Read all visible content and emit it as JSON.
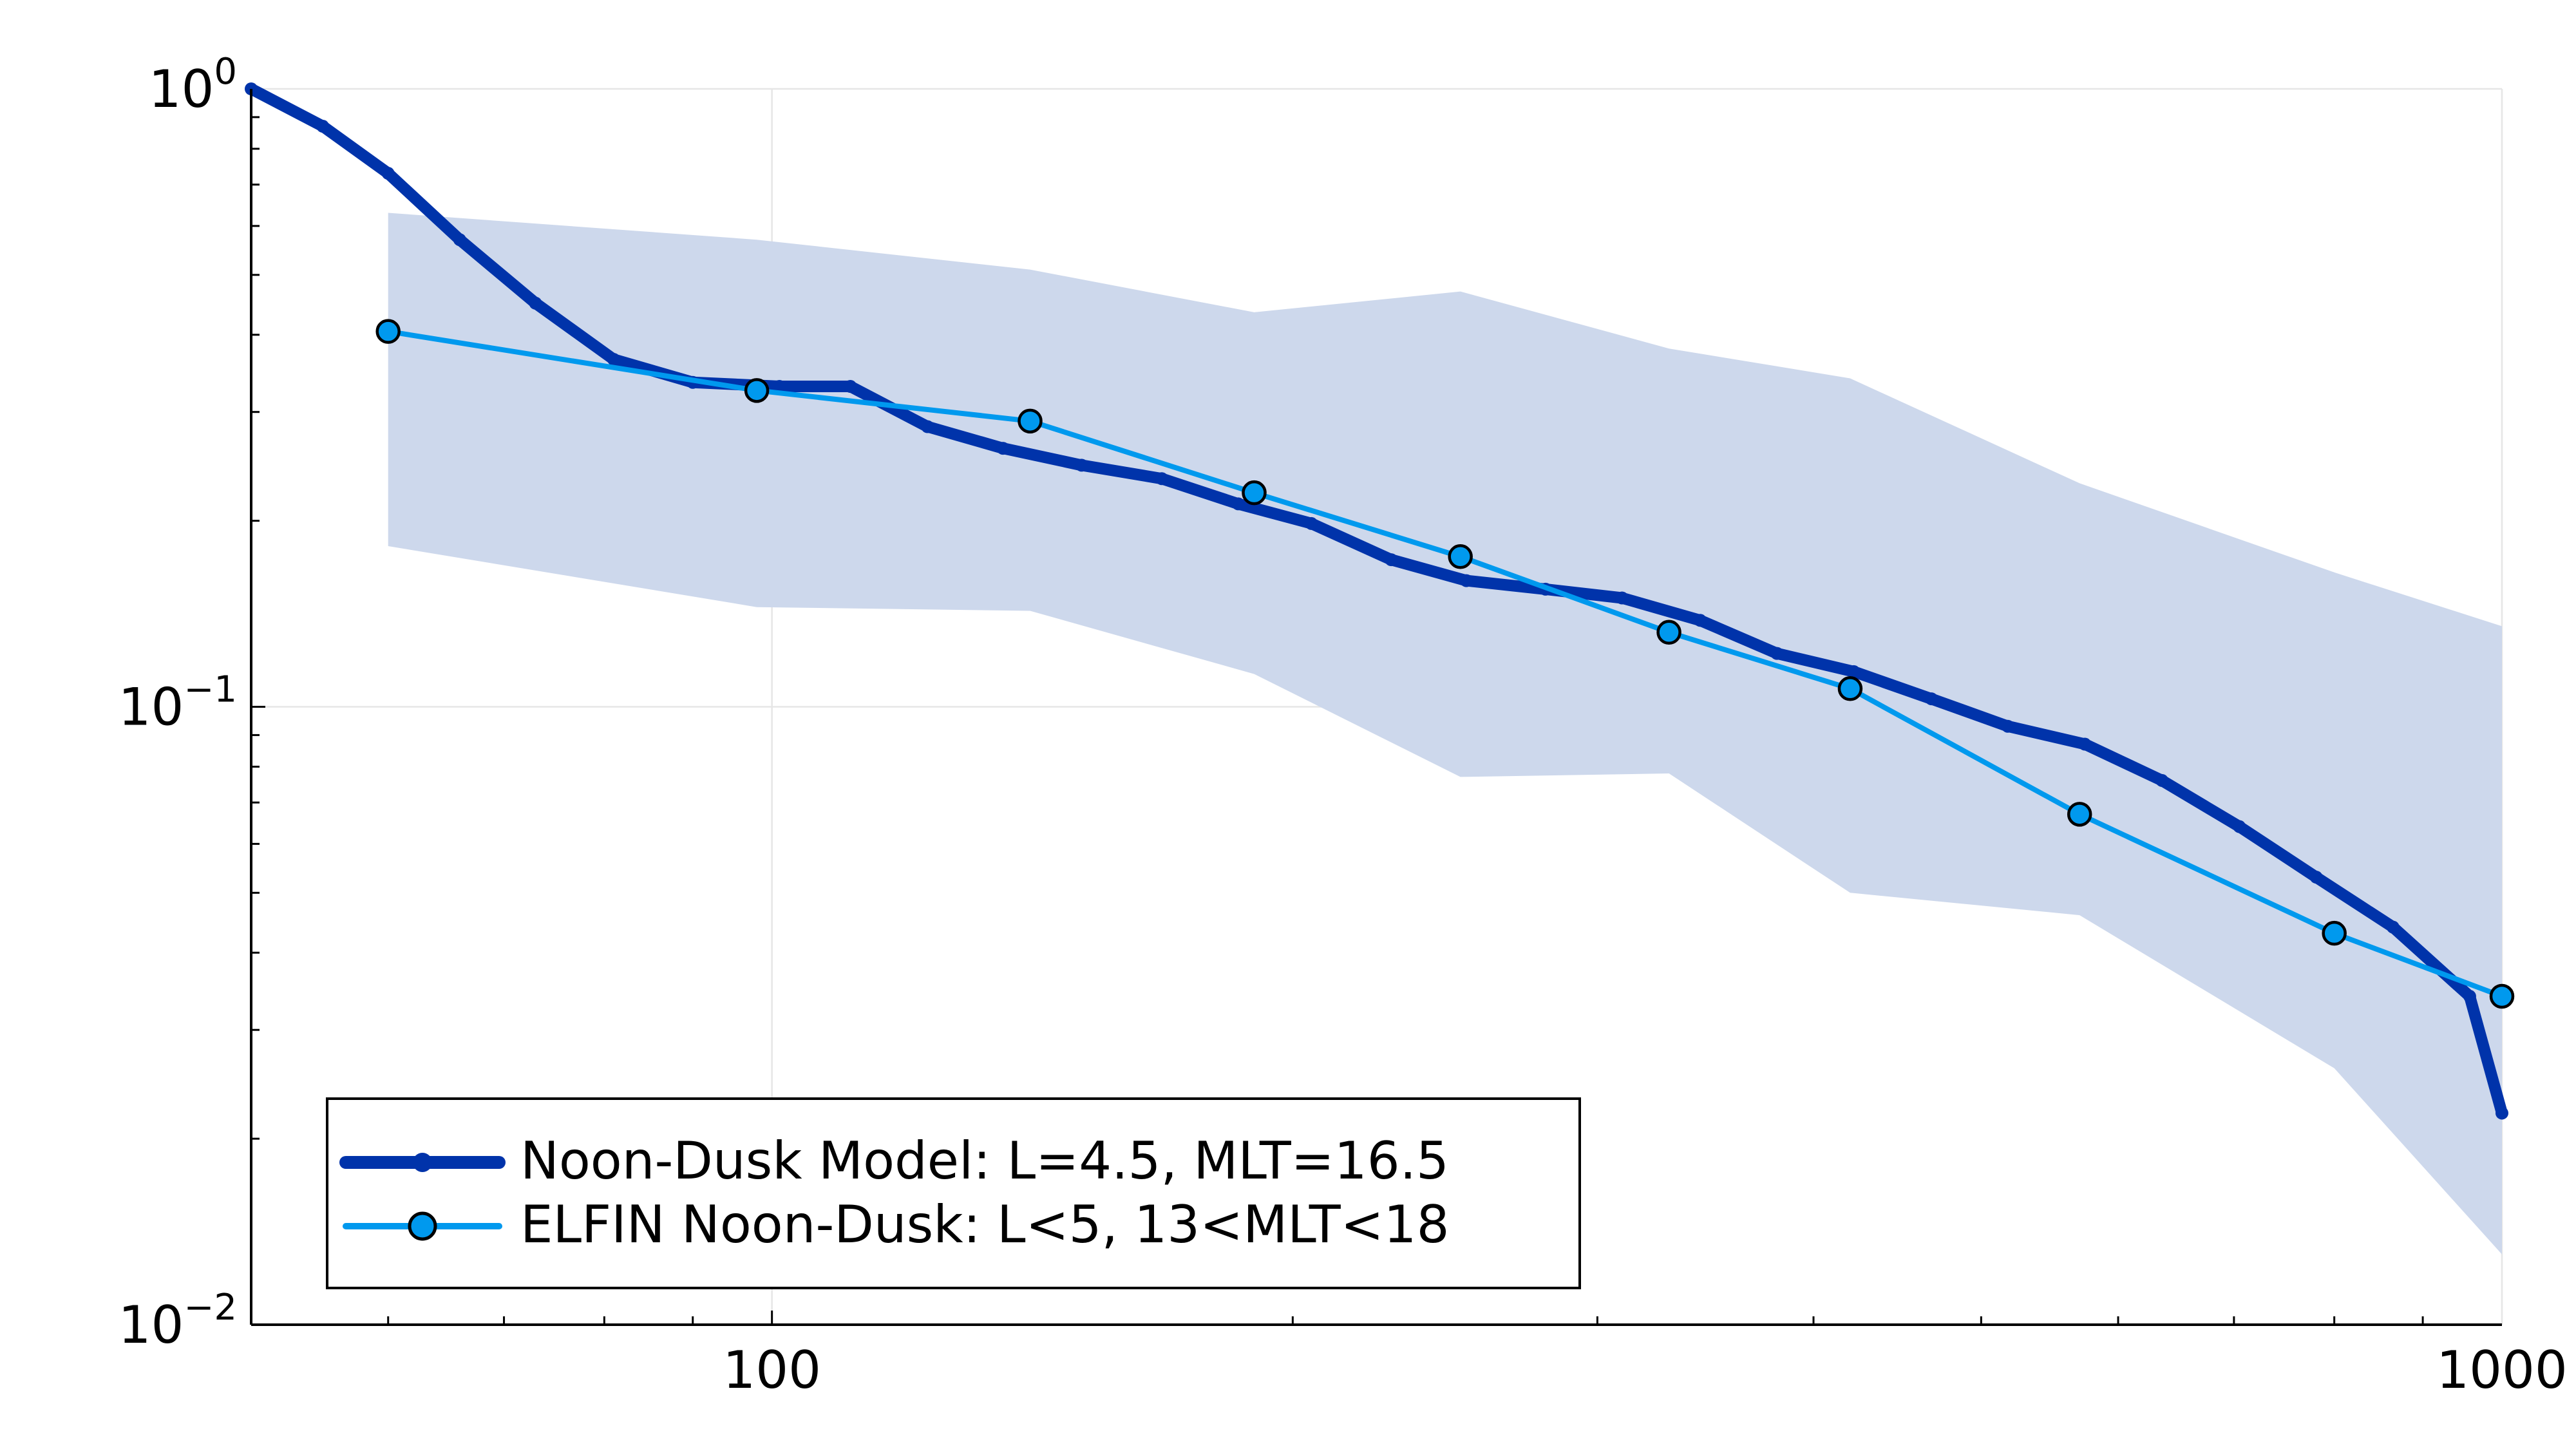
{
  "chart_data": {
    "type": "line",
    "title": "",
    "xlabel": "",
    "ylabel": "",
    "x_scale": "log",
    "y_scale": "log",
    "xlim": [
      50,
      1000
    ],
    "ylim": [
      0.01,
      1.0
    ],
    "grid": true,
    "legend_position": "bottom-left",
    "x_ticks": [
      {
        "value": 100,
        "label": "100"
      },
      {
        "value": 1000,
        "label": "1000"
      }
    ],
    "y_ticks": [
      {
        "value": 1.0,
        "base": "10",
        "exp": "0"
      },
      {
        "value": 0.1,
        "base": "10",
        "exp": "−1"
      },
      {
        "value": 0.01,
        "base": "10",
        "exp": "−2"
      }
    ],
    "band": {
      "color": "#cdd8ec",
      "x": [
        60,
        98,
        141,
        190,
        250,
        330,
        420,
        570,
        800,
        1000
      ],
      "upper": [
        0.63,
        0.57,
        0.51,
        0.435,
        0.47,
        0.38,
        0.34,
        0.23,
        0.165,
        0.135
      ],
      "lower": [
        0.182,
        0.145,
        0.143,
        0.113,
        0.077,
        0.078,
        0.05,
        0.046,
        0.026,
        0.013
      ]
    },
    "series": [
      {
        "name": "Noon-Dusk Model: L=4.5, MLT=16.5",
        "color": "#0033aa",
        "marker": "small-dot",
        "x": [
          50,
          55,
          60,
          66,
          73,
          81,
          90,
          101,
          111,
          123,
          136,
          151,
          168,
          186,
          205,
          228,
          252,
          280,
          310,
          344,
          381,
          422,
          468,
          518,
          574,
          636,
          705,
          781,
          865,
          958,
          1000
        ],
        "y": [
          1.0,
          0.87,
          0.73,
          0.57,
          0.45,
          0.365,
          0.335,
          0.33,
          0.33,
          0.284,
          0.262,
          0.246,
          0.234,
          0.213,
          0.198,
          0.173,
          0.16,
          0.155,
          0.15,
          0.138,
          0.122,
          0.114,
          0.103,
          0.093,
          0.087,
          0.076,
          0.064,
          0.053,
          0.044,
          0.034,
          0.022
        ]
      },
      {
        "name": "ELFIN Noon-Dusk: L<5, 13<MLT<18",
        "color": "#0099ee",
        "marker": "circle",
        "x": [
          60,
          98,
          141,
          190,
          250,
          330,
          420,
          570,
          800,
          1000
        ],
        "y": [
          0.405,
          0.325,
          0.29,
          0.222,
          0.175,
          0.132,
          0.107,
          0.067,
          0.043,
          0.034
        ]
      }
    ]
  }
}
